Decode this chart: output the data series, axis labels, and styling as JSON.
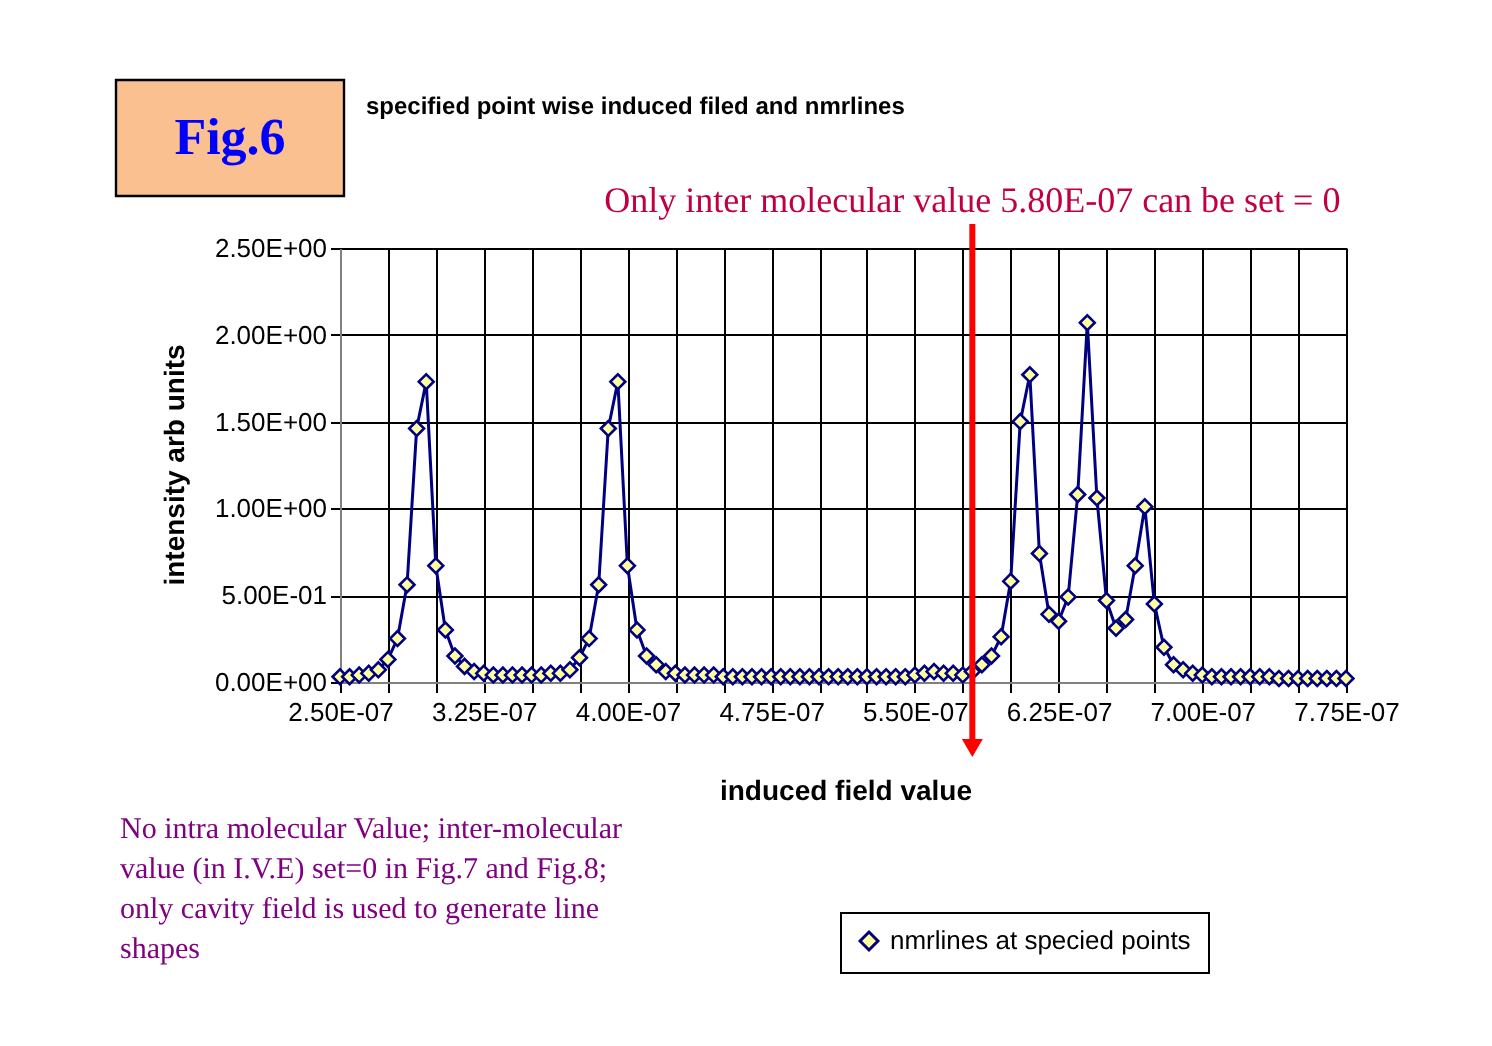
{
  "chart_data": {
    "type": "line",
    "title": "specified point wise induced filed and nmrlines",
    "xlabel": "induced field value",
    "ylabel": "intensity arb units",
    "x": [
      2.5e-07,
      2.55e-07,
      2.6e-07,
      2.65e-07,
      2.7e-07,
      2.75e-07,
      2.8e-07,
      2.85e-07,
      2.9e-07,
      2.95e-07,
      3e-07,
      3.05e-07,
      3.1e-07,
      3.15e-07,
      3.2e-07,
      3.25e-07,
      3.3e-07,
      3.35e-07,
      3.4e-07,
      3.45e-07,
      3.5e-07,
      3.55e-07,
      3.6e-07,
      3.65e-07,
      3.7e-07,
      3.75e-07,
      3.8e-07,
      3.85e-07,
      3.9e-07,
      3.95e-07,
      4e-07,
      4.05e-07,
      4.1e-07,
      4.15e-07,
      4.2e-07,
      4.25e-07,
      4.3e-07,
      4.35e-07,
      4.4e-07,
      4.45e-07,
      4.5e-07,
      4.55e-07,
      4.6e-07,
      4.65e-07,
      4.7e-07,
      4.75e-07,
      4.8e-07,
      4.85e-07,
      4.9e-07,
      4.95e-07,
      5e-07,
      5.05e-07,
      5.1e-07,
      5.15e-07,
      5.2e-07,
      5.25e-07,
      5.3e-07,
      5.35e-07,
      5.4e-07,
      5.45e-07,
      5.5e-07,
      5.55e-07,
      5.6e-07,
      5.65e-07,
      5.7e-07,
      5.75e-07,
      5.8e-07,
      5.85e-07,
      5.9e-07,
      5.95e-07,
      6e-07,
      6.05e-07,
      6.1e-07,
      6.15e-07,
      6.2e-07,
      6.25e-07,
      6.3e-07,
      6.35e-07,
      6.4e-07,
      6.45e-07,
      6.5e-07,
      6.55e-07,
      6.6e-07,
      6.65e-07,
      6.7e-07,
      6.75e-07,
      6.8e-07,
      6.85e-07,
      6.9e-07,
      6.95e-07,
      7e-07,
      7.05e-07,
      7.1e-07,
      7.15e-07,
      7.2e-07,
      7.25e-07,
      7.3e-07,
      7.35e-07,
      7.4e-07,
      7.45e-07,
      7.5e-07,
      7.55e-07,
      7.6e-07,
      7.65e-07,
      7.7e-07,
      7.75e-07
    ],
    "series": [
      {
        "name": "nmrlines at specied points",
        "color": "#000080",
        "values": [
          0.03,
          0.03,
          0.04,
          0.05,
          0.07,
          0.13,
          0.25,
          0.56,
          1.46,
          1.73,
          0.67,
          0.3,
          0.15,
          0.09,
          0.06,
          0.05,
          0.04,
          0.04,
          0.04,
          0.04,
          0.04,
          0.04,
          0.05,
          0.05,
          0.07,
          0.14,
          0.25,
          0.56,
          1.46,
          1.73,
          0.67,
          0.3,
          0.15,
          0.1,
          0.06,
          0.05,
          0.04,
          0.04,
          0.04,
          0.04,
          0.03,
          0.03,
          0.03,
          0.03,
          0.03,
          0.03,
          0.03,
          0.03,
          0.03,
          0.03,
          0.03,
          0.03,
          0.03,
          0.03,
          0.03,
          0.03,
          0.03,
          0.03,
          0.03,
          0.03,
          0.04,
          0.05,
          0.06,
          0.05,
          0.05,
          0.04,
          0.06,
          0.1,
          0.15,
          0.26,
          0.58,
          1.5,
          1.77,
          0.74,
          0.39,
          0.35,
          0.49,
          1.08,
          2.07,
          1.06,
          0.47,
          0.31,
          0.36,
          0.67,
          1.01,
          0.45,
          0.2,
          0.1,
          0.07,
          0.05,
          0.04,
          0.03,
          0.03,
          0.03,
          0.03,
          0.03,
          0.03,
          0.03,
          0.02,
          0.02,
          0.02,
          0.02,
          0.02,
          0.02,
          0.02,
          0.02
        ]
      }
    ],
    "xlim": [
      2.5e-07,
      7.75e-07
    ],
    "xticks": [
      {
        "value": 2.5e-07,
        "label": "2.50E-07"
      },
      {
        "value": 2.75e-07,
        "label": null
      },
      {
        "value": 3e-07,
        "label": null
      },
      {
        "value": 3.25e-07,
        "label": "3.25E-07"
      },
      {
        "value": 3.5e-07,
        "label": null
      },
      {
        "value": 3.75e-07,
        "label": null
      },
      {
        "value": 4e-07,
        "label": "4.00E-07"
      },
      {
        "value": 4.25e-07,
        "label": null
      },
      {
        "value": 4.5e-07,
        "label": null
      },
      {
        "value": 4.75e-07,
        "label": "4.75E-07"
      },
      {
        "value": 5e-07,
        "label": null
      },
      {
        "value": 5.25e-07,
        "label": null
      },
      {
        "value": 5.5e-07,
        "label": "5.50E-07"
      },
      {
        "value": 5.75e-07,
        "label": null
      },
      {
        "value": 6e-07,
        "label": null
      },
      {
        "value": 6.25e-07,
        "label": "6.25E-07"
      },
      {
        "value": 6.5e-07,
        "label": null
      },
      {
        "value": 6.75e-07,
        "label": null
      },
      {
        "value": 7e-07,
        "label": "7.00E-07"
      },
      {
        "value": 7.25e-07,
        "label": null
      },
      {
        "value": 7.5e-07,
        "label": null
      },
      {
        "value": 7.75e-07,
        "label": "7.75E-07"
      }
    ],
    "ylim": [
      0,
      2.5
    ],
    "yticks": [
      {
        "value": 0,
        "label": "0.00E+00"
      },
      {
        "value": 0.5,
        "label": "5.00E-01"
      },
      {
        "value": 1,
        "label": "1.00E+00"
      },
      {
        "value": 1.5,
        "label": "1.50E+00"
      },
      {
        "value": 2,
        "label": "2.00E+00"
      },
      {
        "value": 2.5,
        "label": "2.50E+00"
      }
    ],
    "ref_lines": [
      {
        "axis": "x",
        "value": 5.8e-07,
        "label": "Only inter molecular value 5.80E-07 can be set = 0",
        "color": "#ff0000"
      }
    ],
    "annotations": [
      "Fig.6",
      "No intra molecular Value; inter-molecular value (in I.V.E) set=0 in Fig.7 and Fig.8; only cavity field is used to generate line shapes"
    ],
    "grid": true,
    "legend": "bottom",
    "marker": "diamond",
    "line_style": "solid"
  }
}
